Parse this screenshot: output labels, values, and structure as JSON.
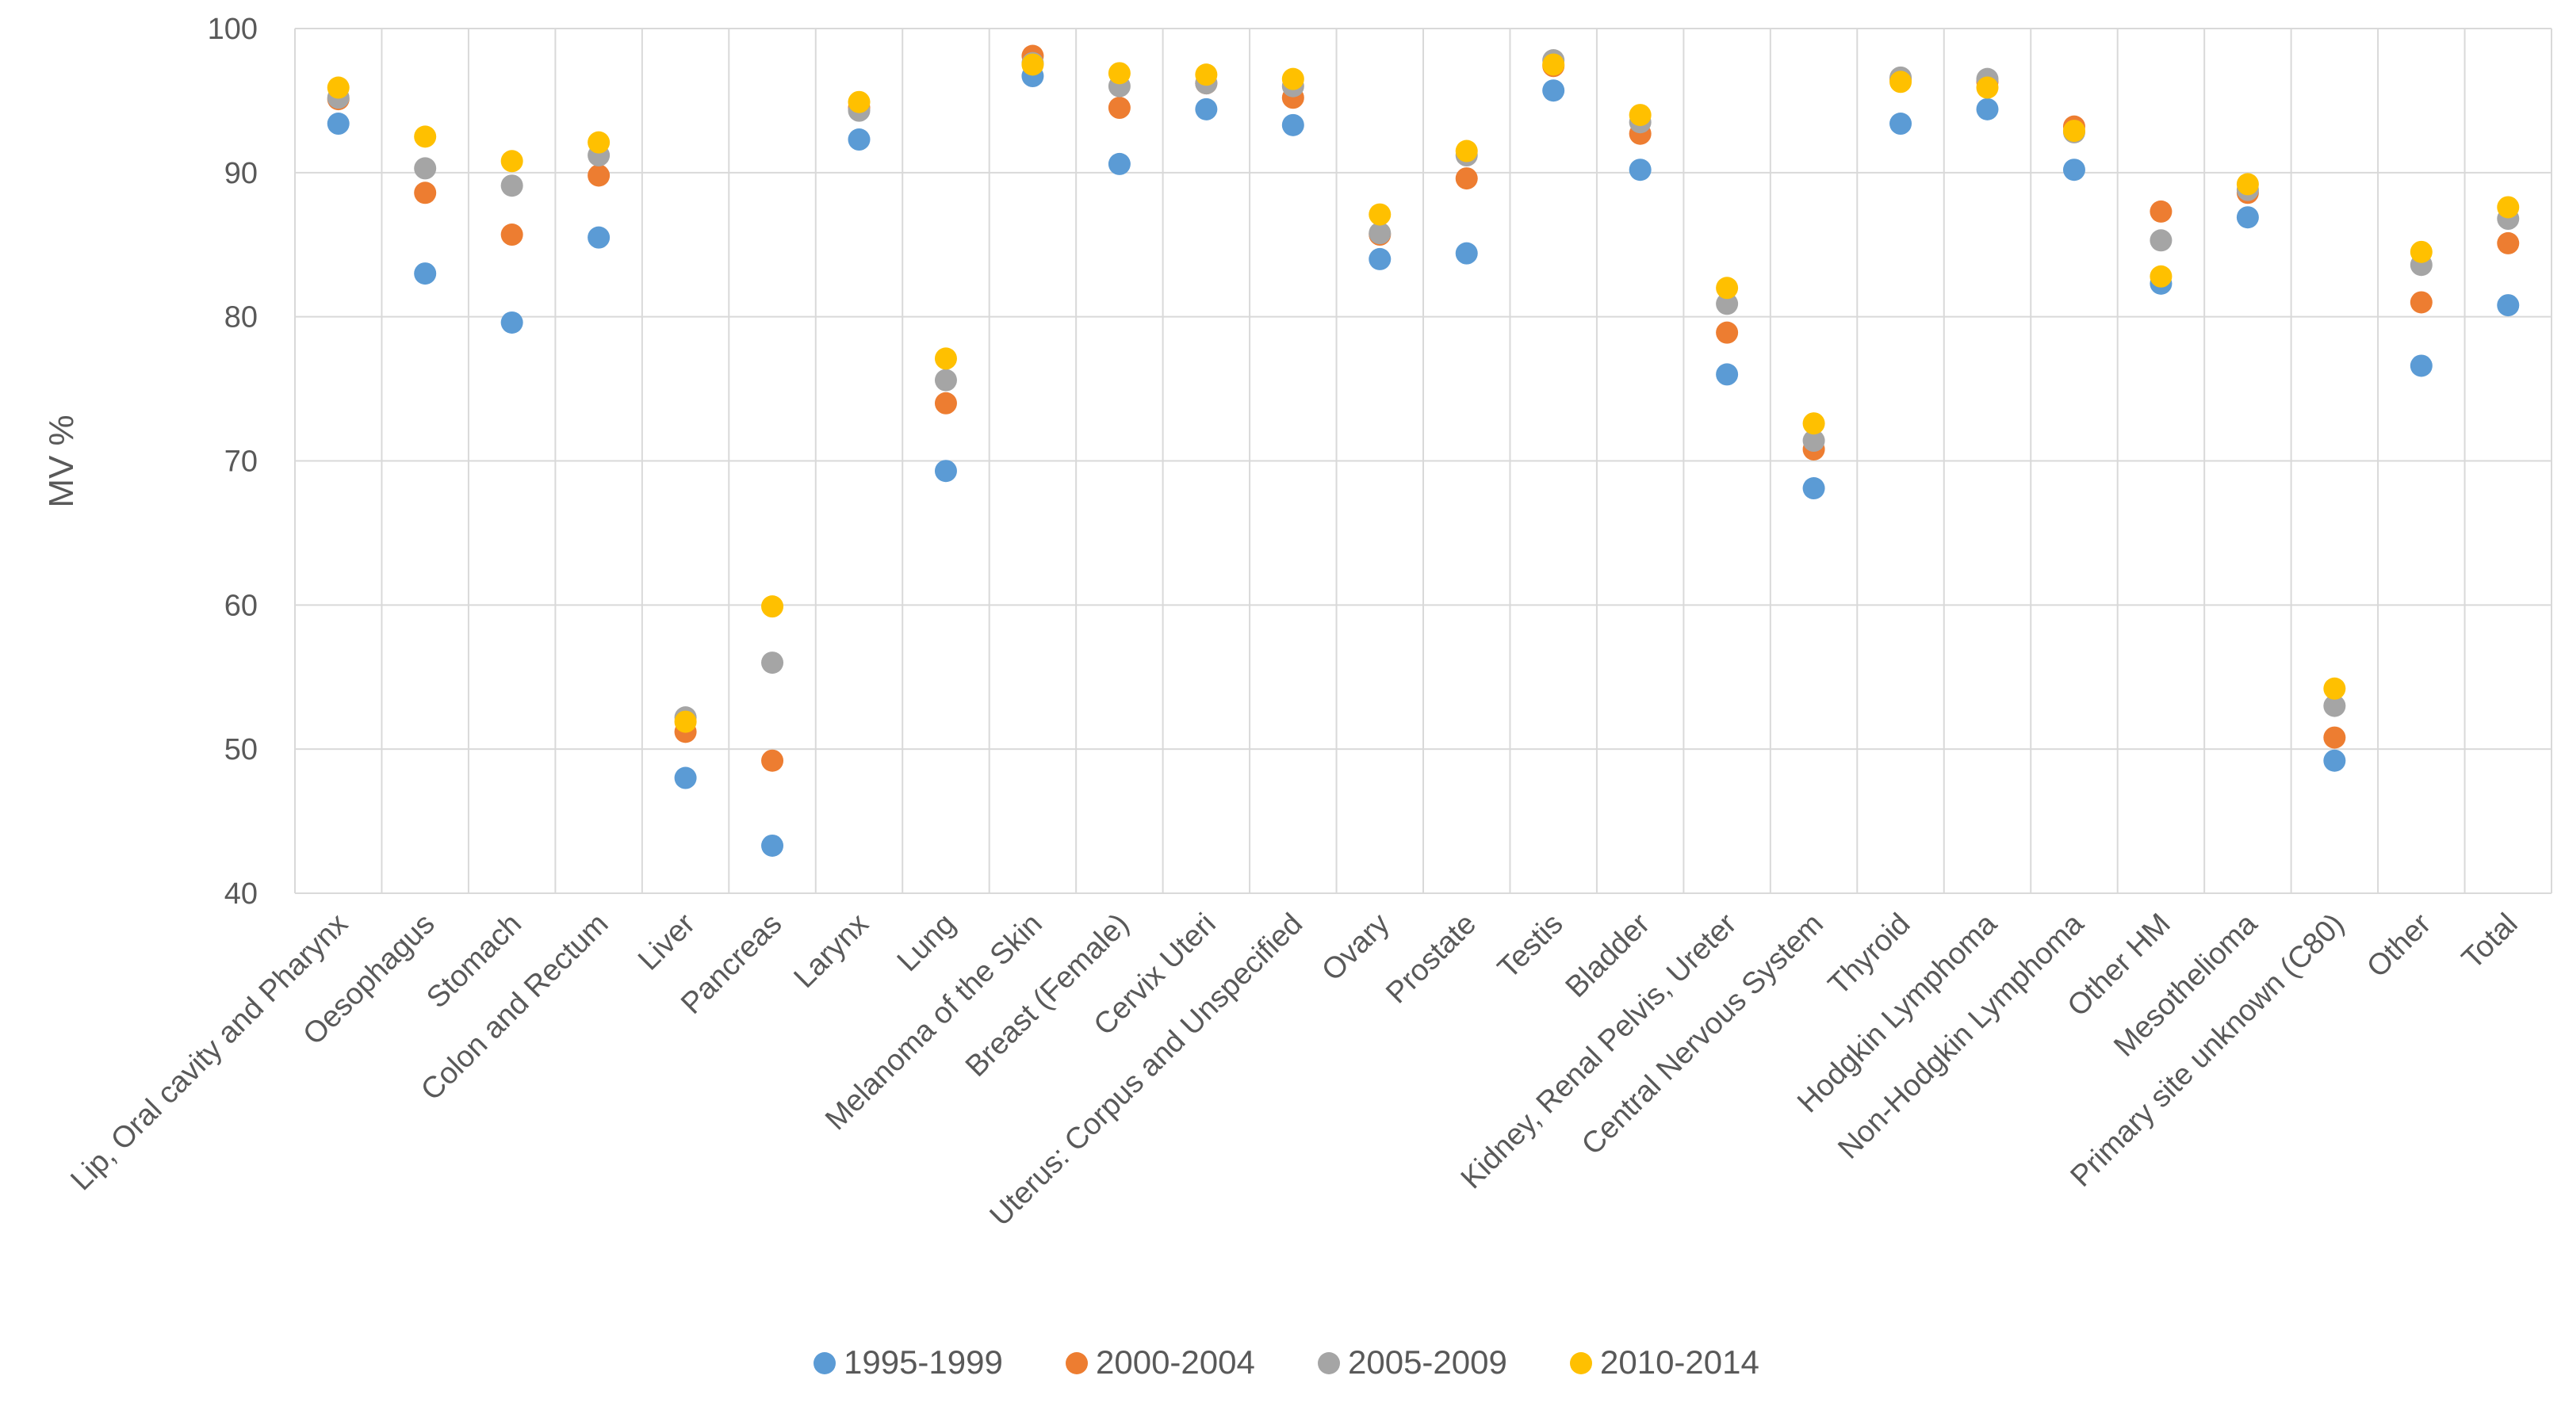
{
  "chart_data": {
    "type": "scatter",
    "title": "",
    "xlabel": "",
    "ylabel": "MV %",
    "ylim": [
      40,
      100
    ],
    "yticks": [
      40,
      50,
      60,
      70,
      80,
      90,
      100
    ],
    "grid": true,
    "legend_position": "bottom",
    "categories": [
      "Lip, Oral cavity and Pharynx",
      "Oesophagus",
      "Stomach",
      "Colon and Rectum",
      "Liver",
      "Pancreas",
      "Larynx",
      "Lung",
      "Melanoma of the Skin",
      "Breast (Female)",
      "Cervix Uteri",
      "Uterus: Corpus and Unspecified",
      "Ovary",
      "Prostate",
      "Testis",
      "Bladder",
      "Kidney, Renal Pelvis, Ureter",
      "Central Nervous System",
      "Thyroid",
      "Hodgkin Lymphoma",
      "Non-Hodgkin Lymphoma",
      "Other HM",
      "Mesothelioma",
      "Primary site unknown (C80)",
      "Other",
      "Total"
    ],
    "series": [
      {
        "name": "1995-1999",
        "color": "#5B9BD5",
        "values": [
          93.4,
          83.0,
          79.6,
          85.5,
          48.0,
          43.3,
          92.3,
          69.3,
          96.7,
          90.6,
          94.4,
          93.3,
          84.0,
          84.4,
          95.7,
          90.2,
          76.0,
          68.1,
          93.4,
          94.4,
          90.2,
          82.3,
          86.9,
          49.2,
          76.6,
          80.8
        ]
      },
      {
        "name": "2000-2004",
        "color": "#ED7D31",
        "values": [
          95.1,
          88.6,
          85.7,
          89.8,
          51.2,
          49.2,
          94.5,
          74.0,
          98.1,
          94.5,
          96.2,
          95.2,
          85.7,
          89.6,
          97.4,
          92.7,
          78.9,
          70.8,
          96.5,
          96.3,
          93.2,
          87.3,
          88.6,
          50.8,
          81.0,
          85.1
        ]
      },
      {
        "name": "2005-2009",
        "color": "#A5A5A5",
        "values": [
          95.2,
          90.3,
          89.1,
          91.2,
          52.2,
          56.0,
          94.3,
          75.6,
          97.6,
          96.0,
          96.2,
          96.0,
          85.8,
          91.2,
          97.8,
          93.5,
          80.9,
          71.4,
          96.6,
          96.5,
          92.8,
          85.3,
          88.8,
          53.0,
          83.6,
          86.8
        ]
      },
      {
        "name": "2010-2014",
        "color": "#FFC000",
        "values": [
          95.9,
          92.5,
          90.8,
          92.1,
          51.9,
          59.9,
          94.9,
          77.1,
          97.5,
          96.9,
          96.8,
          96.5,
          87.1,
          91.5,
          97.5,
          94.0,
          82.0,
          72.6,
          96.3,
          95.9,
          92.9,
          82.8,
          89.2,
          54.2,
          84.5,
          87.6
        ]
      }
    ]
  }
}
